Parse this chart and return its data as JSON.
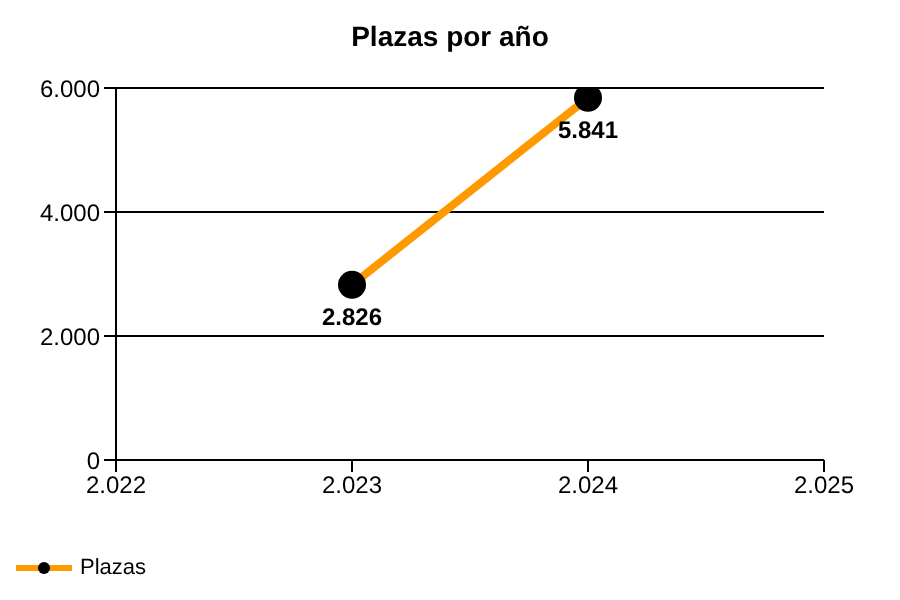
{
  "chart_data": {
    "type": "line",
    "title": "Plazas por año",
    "x": [
      2023,
      2024
    ],
    "series": [
      {
        "name": "Plazas",
        "color": "#ff9900",
        "values": [
          2826,
          5841
        ],
        "value_labels": [
          "2.826",
          "5.841"
        ]
      }
    ],
    "xlim": [
      2022,
      2025
    ],
    "xticks": [
      {
        "value": 2022,
        "label": "2.022"
      },
      {
        "value": 2023,
        "label": "2.023"
      },
      {
        "value": 2024,
        "label": "2.024"
      },
      {
        "value": 2025,
        "label": "2.025"
      }
    ],
    "ylim": [
      0,
      6000
    ],
    "yticks": [
      0,
      {
        "value": 2000,
        "label": "2.000"
      },
      {
        "value": 4000,
        "label": "4.000"
      },
      {
        "value": 6000,
        "label": "6.000"
      }
    ],
    "grid": "y",
    "legend": "bottom left",
    "marker": "circle",
    "line_style": "solid"
  }
}
